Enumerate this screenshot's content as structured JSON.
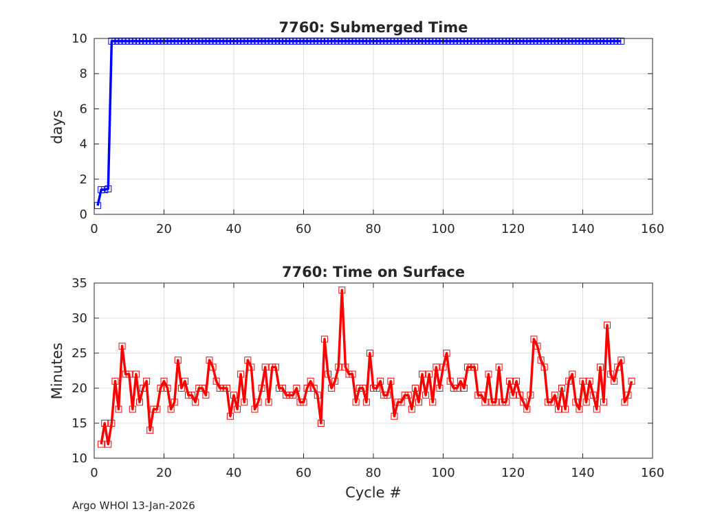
{
  "footer": "Argo WHOI 13-Jan-2026",
  "colors": {
    "submerged": "#0000ff",
    "surface": "#ff0000",
    "grid": "#dcdcdc",
    "axis": "#262626"
  },
  "chart_data": [
    {
      "type": "line",
      "title": "7760: Submerged Time",
      "xlabel": "",
      "ylabel": "days",
      "xlim": [
        0,
        160
      ],
      "ylim": [
        0,
        10
      ],
      "xticks": [
        0,
        20,
        40,
        60,
        80,
        100,
        120,
        140,
        160
      ],
      "yticks": [
        0,
        2,
        4,
        6,
        8,
        10
      ],
      "grid": true,
      "marker": "square",
      "series": [
        {
          "name": "Submerged Time",
          "x": [
            1,
            2,
            3,
            4,
            5
          ],
          "values": [
            0.5,
            1.4,
            1.4,
            1.45,
            9.85
          ]
        }
      ],
      "plateau": {
        "from_cycle": 5,
        "to_cycle": 151,
        "value": 9.85
      }
    },
    {
      "type": "line",
      "title": "7760: Time on Surface",
      "xlabel": "Cycle #",
      "ylabel": "Minutes",
      "xlim": [
        0,
        160
      ],
      "ylim": [
        10,
        35
      ],
      "xticks": [
        0,
        20,
        40,
        60,
        80,
        100,
        120,
        140,
        160
      ],
      "yticks": [
        10,
        15,
        20,
        25,
        30,
        35
      ],
      "grid": true,
      "marker": "square",
      "series": [
        {
          "name": "Time on Surface",
          "x_start": 2,
          "values": [
            12,
            15,
            12,
            15,
            21,
            17,
            26,
            22,
            22,
            17,
            22,
            18,
            20,
            21,
            14,
            17,
            17,
            20,
            21,
            20,
            17,
            18,
            24,
            20,
            21,
            19,
            19,
            18,
            20,
            20,
            19,
            24,
            23,
            21,
            20,
            20,
            20,
            16,
            19,
            17,
            22,
            18,
            24,
            23,
            17,
            18,
            20,
            23,
            18,
            23,
            23,
            20,
            20,
            19,
            19,
            19,
            20,
            18,
            18,
            20,
            21,
            20,
            19,
            15,
            27,
            22,
            20,
            21,
            23,
            34,
            23,
            22,
            22,
            18,
            20,
            20,
            18,
            25,
            20,
            20,
            21,
            19,
            19,
            21,
            16,
            18,
            18,
            19,
            19,
            17,
            20,
            18,
            22,
            19,
            22,
            18,
            23,
            20,
            23,
            25,
            21,
            20,
            20,
            21,
            20,
            23,
            23,
            23,
            19,
            19,
            18,
            22,
            18,
            18,
            23,
            18,
            18,
            21,
            19,
            21,
            19,
            18,
            17,
            19,
            27,
            26,
            24,
            23,
            18,
            18,
            19,
            17,
            20,
            17,
            21,
            22,
            18,
            17,
            21,
            18,
            21,
            19,
            17,
            23,
            18,
            29,
            22,
            21,
            23,
            24,
            18,
            19,
            21
          ]
        }
      ]
    }
  ]
}
